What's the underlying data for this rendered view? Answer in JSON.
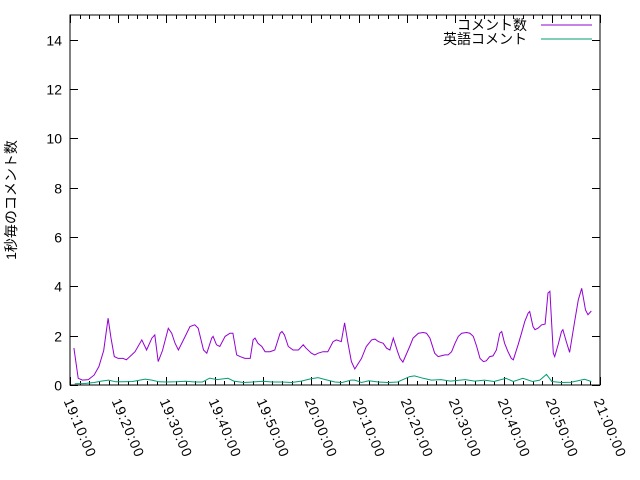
{
  "window": {
    "background": "#ffffff",
    "border_color": "#000000"
  },
  "chart_data": {
    "type": "line",
    "title": "",
    "xlabel": "",
    "ylabel": "1秒毎のコメント数",
    "grid": false,
    "legend_position": "top-right-inside",
    "x_axis": {
      "start": "19:10:00",
      "end": "21:00:00",
      "major_tick_interval_min": 10,
      "minor_tick_interval_min": 2,
      "label_rotation_deg": 67,
      "tick_labels": [
        "19:10:00",
        "19:20:00",
        "19:30:00",
        "19:40:00",
        "19:50:00",
        "20:00:00",
        "20:10:00",
        "20:20:00",
        "20:30:00",
        "20:40:00",
        "20:50:00",
        "21:00:00"
      ]
    },
    "y_axis": {
      "min": 0,
      "max": 15,
      "ticks": [
        0,
        2,
        4,
        6,
        8,
        10,
        12,
        14
      ],
      "tick_labels": [
        "0",
        "2",
        "4",
        "6",
        "8",
        "10",
        "12",
        "14"
      ]
    },
    "series": [
      {
        "name": "コメント数",
        "color": "#9400d3",
        "points": [
          [
            "19:10:48",
            1.5
          ],
          [
            "19:11:42",
            0.27
          ],
          [
            "19:12:36",
            0.2
          ],
          [
            "19:13:48",
            0.22
          ],
          [
            "19:15:00",
            0.4
          ],
          [
            "19:16:00",
            0.75
          ],
          [
            "19:17:00",
            1.4
          ],
          [
            "19:17:54",
            2.71
          ],
          [
            "19:18:30",
            1.9
          ],
          [
            "19:19:12",
            1.15
          ],
          [
            "19:20:00",
            1.08
          ],
          [
            "19:21:00",
            1.08
          ],
          [
            "19:21:42",
            1.02
          ],
          [
            "19:22:48",
            1.22
          ],
          [
            "19:23:30",
            1.35
          ],
          [
            "19:24:54",
            1.83
          ],
          [
            "19:25:54",
            1.42
          ],
          [
            "19:27:00",
            1.9
          ],
          [
            "19:27:36",
            2.03
          ],
          [
            "19:28:18",
            0.95
          ],
          [
            "19:29:12",
            1.4
          ],
          [
            "19:30:24",
            2.3
          ],
          [
            "19:31:06",
            2.1
          ],
          [
            "19:31:48",
            1.7
          ],
          [
            "19:32:30",
            1.42
          ],
          [
            "19:33:54",
            1.97
          ],
          [
            "19:34:54",
            2.37
          ],
          [
            "19:35:54",
            2.44
          ],
          [
            "19:36:36",
            2.3
          ],
          [
            "19:37:42",
            1.42
          ],
          [
            "19:38:24",
            1.29
          ],
          [
            "19:39:24",
            1.9
          ],
          [
            "19:39:42",
            1.97
          ],
          [
            "19:40:24",
            1.63
          ],
          [
            "19:41:06",
            1.56
          ],
          [
            "19:42:12",
            1.97
          ],
          [
            "19:43:12",
            2.1
          ],
          [
            "19:43:48",
            2.1
          ],
          [
            "19:44:36",
            1.22
          ],
          [
            "19:45:18",
            1.15
          ],
          [
            "19:46:18",
            1.08
          ],
          [
            "19:47:24",
            1.08
          ],
          [
            "19:48:00",
            1.83
          ],
          [
            "19:48:24",
            1.9
          ],
          [
            "19:49:00",
            1.69
          ],
          [
            "19:49:48",
            1.56
          ],
          [
            "19:50:30",
            1.35
          ],
          [
            "19:51:30",
            1.35
          ],
          [
            "19:52:30",
            1.42
          ],
          [
            "19:53:36",
            2.1
          ],
          [
            "19:54:00",
            2.17
          ],
          [
            "19:54:30",
            2.03
          ],
          [
            "19:55:18",
            1.56
          ],
          [
            "19:56:18",
            1.42
          ],
          [
            "19:57:24",
            1.42
          ],
          [
            "19:58:24",
            1.63
          ],
          [
            "19:59:00",
            1.49
          ],
          [
            "20:00:06",
            1.29
          ],
          [
            "20:00:48",
            1.22
          ],
          [
            "20:01:30",
            1.29
          ],
          [
            "20:02:30",
            1.35
          ],
          [
            "20:03:30",
            1.35
          ],
          [
            "20:04:36",
            1.76
          ],
          [
            "20:05:18",
            1.83
          ],
          [
            "20:06:18",
            1.76
          ],
          [
            "20:07:00",
            2.52
          ],
          [
            "20:07:42",
            1.69
          ],
          [
            "20:08:24",
            0.95
          ],
          [
            "20:09:06",
            0.65
          ],
          [
            "20:10:30",
            1.08
          ],
          [
            "20:11:30",
            1.56
          ],
          [
            "20:12:36",
            1.83
          ],
          [
            "20:13:18",
            1.86
          ],
          [
            "20:14:00",
            1.76
          ],
          [
            "20:15:00",
            1.69
          ],
          [
            "20:15:42",
            1.49
          ],
          [
            "20:16:24",
            1.42
          ],
          [
            "20:17:06",
            1.9
          ],
          [
            "20:18:00",
            1.35
          ],
          [
            "20:18:30",
            1.08
          ],
          [
            "20:19:06",
            0.93
          ],
          [
            "20:20:30",
            1.56
          ],
          [
            "20:21:12",
            1.9
          ],
          [
            "20:22:18",
            2.1
          ],
          [
            "20:23:18",
            2.13
          ],
          [
            "20:24:00",
            2.1
          ],
          [
            "20:24:42",
            1.9
          ],
          [
            "20:25:42",
            1.29
          ],
          [
            "20:26:24",
            1.15
          ],
          [
            "20:27:00",
            1.18
          ],
          [
            "20:27:48",
            1.22
          ],
          [
            "20:28:30",
            1.22
          ],
          [
            "20:29:12",
            1.35
          ],
          [
            "20:29:54",
            1.69
          ],
          [
            "20:30:36",
            1.97
          ],
          [
            "20:31:18",
            2.1
          ],
          [
            "20:32:18",
            2.13
          ],
          [
            "20:33:00",
            2.1
          ],
          [
            "20:33:42",
            1.97
          ],
          [
            "20:34:24",
            1.56
          ],
          [
            "20:35:06",
            1.08
          ],
          [
            "20:35:48",
            0.95
          ],
          [
            "20:36:24",
            0.98
          ],
          [
            "20:37:06",
            1.15
          ],
          [
            "20:37:48",
            1.18
          ],
          [
            "20:38:30",
            1.42
          ],
          [
            "20:39:12",
            2.1
          ],
          [
            "20:39:36",
            2.17
          ],
          [
            "20:40:12",
            1.69
          ],
          [
            "20:40:54",
            1.35
          ],
          [
            "20:41:36",
            1.08
          ],
          [
            "20:42:00",
            1.02
          ],
          [
            "20:43:00",
            1.63
          ],
          [
            "20:43:42",
            2.1
          ],
          [
            "20:44:24",
            2.58
          ],
          [
            "20:45:06",
            2.92
          ],
          [
            "20:45:24",
            2.98
          ],
          [
            "20:46:06",
            2.37
          ],
          [
            "20:46:30",
            2.24
          ],
          [
            "20:47:12",
            2.31
          ],
          [
            "20:47:54",
            2.44
          ],
          [
            "20:48:36",
            2.47
          ],
          [
            "20:49:12",
            3.73
          ],
          [
            "20:49:36",
            3.8
          ],
          [
            "20:50:18",
            1.29
          ],
          [
            "20:50:36",
            1.15
          ],
          [
            "20:51:18",
            1.63
          ],
          [
            "20:52:00",
            2.17
          ],
          [
            "20:52:18",
            2.24
          ],
          [
            "20:53:00",
            1.76
          ],
          [
            "20:53:42",
            1.32
          ],
          [
            "20:54:48",
            2.64
          ],
          [
            "20:55:30",
            3.45
          ],
          [
            "20:56:12",
            3.92
          ],
          [
            "20:57:00",
            3.04
          ],
          [
            "20:57:30",
            2.85
          ],
          [
            "20:58:12",
            3.0
          ]
        ]
      },
      {
        "name": "英語コメント",
        "color": "#009e73",
        "points": [
          [
            "19:11:00",
            0.05
          ],
          [
            "19:13:00",
            0.06
          ],
          [
            "19:15:00",
            0.1
          ],
          [
            "19:16:30",
            0.16
          ],
          [
            "19:18:00",
            0.2
          ],
          [
            "19:19:30",
            0.13
          ],
          [
            "19:21:00",
            0.13
          ],
          [
            "19:23:00",
            0.14
          ],
          [
            "19:25:36",
            0.24
          ],
          [
            "19:27:00",
            0.2
          ],
          [
            "19:28:30",
            0.13
          ],
          [
            "19:30:00",
            0.12
          ],
          [
            "19:32:00",
            0.13
          ],
          [
            "19:34:00",
            0.15
          ],
          [
            "19:36:00",
            0.12
          ],
          [
            "19:37:30",
            0.12
          ],
          [
            "19:39:00",
            0.28
          ],
          [
            "19:40:30",
            0.22
          ],
          [
            "19:42:48",
            0.27
          ],
          [
            "19:44:00",
            0.16
          ],
          [
            "19:46:00",
            0.1
          ],
          [
            "19:48:00",
            0.12
          ],
          [
            "19:50:00",
            0.15
          ],
          [
            "19:52:00",
            0.12
          ],
          [
            "19:54:00",
            0.12
          ],
          [
            "19:56:00",
            0.1
          ],
          [
            "19:58:00",
            0.16
          ],
          [
            "20:00:00",
            0.25
          ],
          [
            "20:01:30",
            0.3
          ],
          [
            "20:03:00",
            0.22
          ],
          [
            "20:05:00",
            0.12
          ],
          [
            "20:06:30",
            0.1
          ],
          [
            "20:08:18",
            0.2
          ],
          [
            "20:09:06",
            0.2
          ],
          [
            "20:10:30",
            0.1
          ],
          [
            "20:12:00",
            0.17
          ],
          [
            "20:14:00",
            0.12
          ],
          [
            "20:16:00",
            0.1
          ],
          [
            "20:18:00",
            0.12
          ],
          [
            "20:20:30",
            0.34
          ],
          [
            "20:21:30",
            0.37
          ],
          [
            "20:23:18",
            0.27
          ],
          [
            "20:25:00",
            0.2
          ],
          [
            "20:27:00",
            0.22
          ],
          [
            "20:29:00",
            0.16
          ],
          [
            "20:31:00",
            0.2
          ],
          [
            "20:32:00",
            0.22
          ],
          [
            "20:34:00",
            0.16
          ],
          [
            "20:36:00",
            0.2
          ],
          [
            "20:38:00",
            0.14
          ],
          [
            "20:40:30",
            0.27
          ],
          [
            "20:42:00",
            0.14
          ],
          [
            "20:44:00",
            0.27
          ],
          [
            "20:46:00",
            0.14
          ],
          [
            "20:47:30",
            0.2
          ],
          [
            "20:48:54",
            0.43
          ],
          [
            "20:50:00",
            0.14
          ],
          [
            "20:52:00",
            0.1
          ],
          [
            "20:54:00",
            0.11
          ],
          [
            "20:56:48",
            0.23
          ],
          [
            "20:58:12",
            0.14
          ]
        ]
      }
    ]
  }
}
